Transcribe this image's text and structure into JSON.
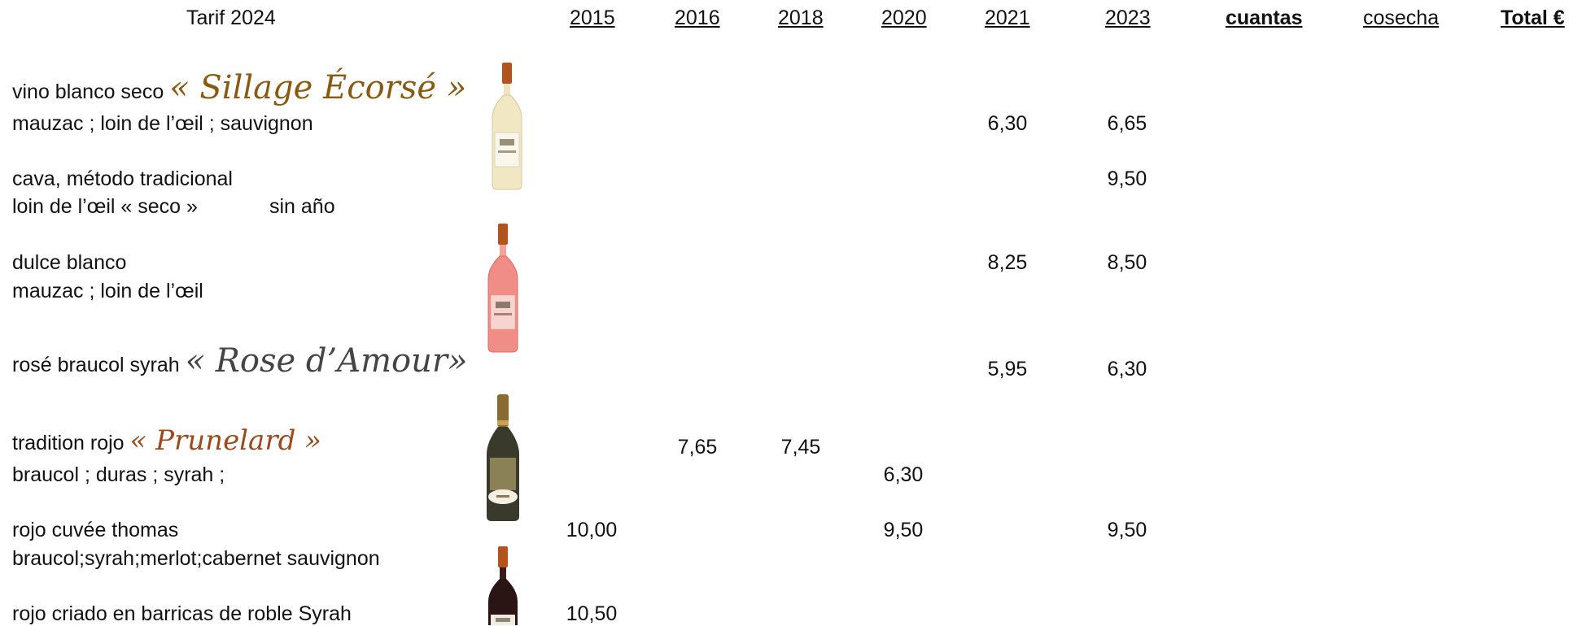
{
  "header": {
    "title": "Tarif 2024",
    "years": [
      "2015",
      "2016",
      "2018",
      "2020",
      "2021",
      "2023"
    ],
    "cuantas": "cuantas",
    "cosecha": "cosecha",
    "total": "Total €"
  },
  "rows": [
    {
      "name": "vino blanco seco",
      "script_name": "« Sillage Écorsé »",
      "grapes": "mauzac ; loin de l’œil ; sauvignon",
      "p2021": "6,30",
      "p2023": "6,65"
    },
    {
      "name": "cava, método tradicional",
      "grapes": "loin de l’œil « seco »",
      "note": "sin año",
      "p2023": "9,50"
    },
    {
      "name": "dulce blanco",
      "grapes": "mauzac ; loin de l’œil",
      "p2021": "8,25",
      "p2023": "8,50"
    },
    {
      "name": "rosé braucol syrah",
      "script_name": "« Rose d’Amour»",
      "p2021": "5,95",
      "p2023": "6,30"
    },
    {
      "name": "tradition rojo",
      "script_name": "« Prunelard »",
      "grapes": "braucol ; duras ; syrah ;",
      "p2016": "7,65",
      "p2018": "7,45",
      "p2020": "6,30"
    },
    {
      "name": "rojo cuvée thomas",
      "grapes": "braucol;syrah;merlot;cabernet sauvignon",
      "p2015": "10,00",
      "p2020": "9,50",
      "p2023": "9,50"
    },
    {
      "name": "rojo criado en barricas de roble  Syrah",
      "p2015": "10,50"
    }
  ],
  "colors": {
    "script_gold": "#8a5a14",
    "script_gray": "#444444",
    "script_brown": "#9a4a1c"
  }
}
